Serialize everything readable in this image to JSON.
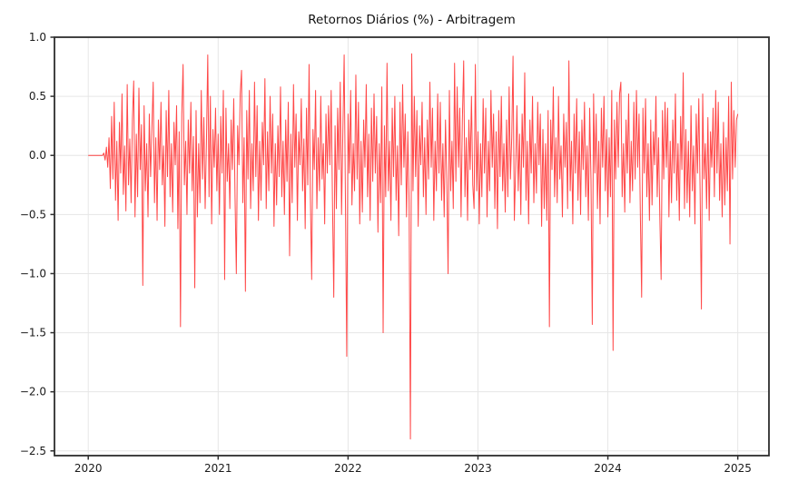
{
  "chart_data": {
    "type": "line",
    "title": "Retornos Diários (%) - Arbitragem",
    "xlabel": "",
    "ylabel": "",
    "grid": true,
    "legend": "none",
    "xlim": [
      2019.74,
      2025.24
    ],
    "ylim": [
      -2.54,
      1.0
    ],
    "x_ticks": [
      2020,
      2021,
      2022,
      2023,
      2024,
      2025
    ],
    "x_tick_labels": [
      "2020",
      "2021",
      "2022",
      "2023",
      "2024",
      "2025"
    ],
    "y_ticks": [
      1.0,
      0.5,
      0.0,
      -0.5,
      -1.0,
      -1.5,
      -2.0,
      -2.5
    ],
    "y_tick_labels": [
      "1.0",
      "0.5",
      "0.0",
      "−0.5",
      "−1.0",
      "−1.5",
      "−2.0",
      "−2.5"
    ],
    "style": {
      "line_color": "#ff1f1f",
      "line_opacity": 0.82,
      "line_width": 1,
      "grid_color": "#e6e6e6",
      "spine_color": "#2e2e2e",
      "background": "#ffffff"
    },
    "extremes": {
      "min": {
        "x": 2022.48,
        "y": -2.4
      },
      "max": {
        "x": 2022.49,
        "y": 0.86
      }
    },
    "notable_drops": [
      {
        "x": 2020.42,
        "y": -1.1
      },
      {
        "x": 2020.71,
        "y": -1.45
      },
      {
        "x": 2020.82,
        "y": -1.12
      },
      {
        "x": 2021.05,
        "y": -1.05
      },
      {
        "x": 2021.14,
        "y": -1.0
      },
      {
        "x": 2021.21,
        "y": -1.15
      },
      {
        "x": 2021.72,
        "y": -1.05
      },
      {
        "x": 2021.89,
        "y": -1.2
      },
      {
        "x": 2021.99,
        "y": -1.7
      },
      {
        "x": 2022.27,
        "y": -1.5
      },
      {
        "x": 2022.48,
        "y": -2.4
      },
      {
        "x": 2023.55,
        "y": -1.45
      },
      {
        "x": 2023.88,
        "y": -1.43
      },
      {
        "x": 2024.04,
        "y": -1.65
      },
      {
        "x": 2024.26,
        "y": -1.2
      },
      {
        "x": 2024.41,
        "y": -1.05
      },
      {
        "x": 2024.72,
        "y": -1.3
      }
    ],
    "series": [
      {
        "name": "Arbitragem",
        "x_start": 2020.0,
        "x_step": 0.01,
        "x_unit": "years",
        "values": [
          0,
          0,
          0,
          0,
          0,
          0,
          0,
          0,
          0,
          0,
          0,
          0,
          0.02,
          -0.04,
          0.07,
          -0.1,
          0.15,
          -0.28,
          0.33,
          -0.2,
          0.45,
          -0.38,
          0.12,
          -0.55,
          0.28,
          -0.15,
          0.52,
          -0.33,
          0.08,
          -0.47,
          0.6,
          -0.25,
          0.14,
          -0.4,
          0.3,
          0.63,
          -0.52,
          0.18,
          -0.35,
          0.57,
          -0.12,
          0.26,
          -1.1,
          0.42,
          -0.3,
          0.1,
          -0.52,
          0.35,
          -0.18,
          0.23,
          0.62,
          -0.4,
          0.15,
          -0.55,
          0.3,
          -0.12,
          0.45,
          -0.25,
          0.08,
          -0.6,
          0.38,
          -0.18,
          0.55,
          -0.35,
          0.1,
          -0.48,
          0.28,
          -0.08,
          0.42,
          -0.62,
          0.2,
          -1.45,
          0.35,
          0.77,
          -0.25,
          0.12,
          -0.5,
          0.3,
          -0.15,
          0.45,
          -0.3,
          0.16,
          -1.12,
          0.38,
          -0.52,
          0.1,
          -0.4,
          0.55,
          -0.2,
          0.32,
          -0.45,
          0.12,
          0.85,
          -0.35,
          0.5,
          -0.58,
          0.22,
          -0.1,
          0.4,
          -0.3,
          0.18,
          -0.5,
          0.33,
          -0.15,
          0.55,
          -1.05,
          0.4,
          -0.22,
          0.1,
          -0.45,
          0.3,
          -0.12,
          0.48,
          -0.35,
          -1.0,
          0.25,
          -0.08,
          0.52,
          0.72,
          -0.4,
          0.15,
          -1.15,
          0.38,
          -0.2,
          0.55,
          -0.45,
          0.1,
          -0.3,
          0.62,
          -0.18,
          0.42,
          -0.55,
          0.12,
          -0.38,
          0.28,
          -0.08,
          0.65,
          -0.45,
          0.2,
          -0.3,
          0.5,
          -0.15,
          0.35,
          -0.6,
          0.1,
          -0.42,
          0.25,
          -0.18,
          0.58,
          -0.35,
          0.12,
          -0.5,
          0.3,
          -0.22,
          0.45,
          -0.85,
          0.18,
          -0.4,
          0.6,
          -0.1,
          0.35,
          -0.55,
          0.2,
          -0.08,
          0.48,
          -0.3,
          0.14,
          -0.62,
          0.4,
          -0.25,
          0.77,
          -0.35,
          -1.05,
          0.22,
          -0.12,
          0.55,
          -0.45,
          0.15,
          -0.3,
          0.5,
          -0.2,
          0.1,
          -0.58,
          0.35,
          -0.15,
          0.42,
          -0.08,
          0.55,
          -0.38,
          -1.2,
          0.25,
          -0.45,
          0.4,
          -0.12,
          0.62,
          -0.5,
          0.2,
          0.85,
          -0.4,
          -1.7,
          0.35,
          -0.15,
          0.55,
          -0.42,
          0.1,
          -0.3,
          0.68,
          -0.2,
          0.45,
          -0.58,
          0.12,
          -0.48,
          0.3,
          -0.1,
          0.6,
          -0.35,
          0.18,
          -0.55,
          0.4,
          -0.22,
          0.52,
          -0.15,
          0.33,
          -0.65,
          0.1,
          -0.4,
          0.58,
          -1.5,
          0.25,
          -0.35,
          0.78,
          -0.3,
          0.12,
          -0.55,
          0.4,
          -0.18,
          0.5,
          -0.38,
          0.08,
          -0.68,
          0.45,
          -0.25,
          0.6,
          -0.1,
          0.35,
          -0.52,
          0.2,
          -0.4,
          -2.4,
          0.86,
          -0.3,
          0.5,
          -0.18,
          0.38,
          -0.6,
          0.25,
          -0.08,
          0.45,
          -0.35,
          0.15,
          -0.5,
          0.3,
          -0.2,
          0.62,
          -0.1,
          0.4,
          -0.55,
          0.12,
          -0.3,
          0.52,
          -0.15,
          0.45,
          -0.38,
          0.1,
          -0.52,
          0.3,
          -0.2,
          -1.0,
          0.55,
          -0.3,
          0.12,
          -0.45,
          0.78,
          -0.22,
          0.58,
          -0.1,
          0.4,
          -0.52,
          0.3,
          0.8,
          -0.35,
          0.15,
          -0.55,
          0.3,
          -0.12,
          0.5,
          -0.25,
          -0.45,
          0.77,
          -0.3,
          0.2,
          -0.58,
          0.1,
          -0.35,
          0.48,
          -0.15,
          0.4,
          -0.52,
          0.12,
          -0.3,
          0.55,
          -0.1,
          0.35,
          -0.45,
          0.2,
          -0.62,
          0.38,
          -0.18,
          0.5,
          -0.3,
          0.1,
          -0.48,
          0.3,
          -0.35,
          0.58,
          -0.2,
          0.15,
          0.84,
          -0.55,
          -0.12,
          0.42,
          -0.3,
          0.18,
          -0.5,
          0.35,
          -0.1,
          0.7,
          -0.38,
          0.12,
          -0.58,
          0.3,
          -0.15,
          0.5,
          -0.4,
          0.1,
          -0.32,
          0.45,
          -0.08,
          0.35,
          -0.6,
          0.22,
          -0.45,
          0.1,
          -0.55,
          0.38,
          -1.45,
          0.3,
          -0.12,
          0.58,
          -0.35,
          0.15,
          -0.4,
          0.5,
          -0.2,
          0.08,
          -0.52,
          0.35,
          -0.1,
          0.28,
          -0.45,
          0.8,
          -0.3,
          0.12,
          -0.58,
          0.35,
          -0.15,
          0.48,
          -0.38,
          0.2,
          -0.5,
          0.3,
          -0.12,
          0.45,
          -0.35,
          0.08,
          -0.55,
          0.4,
          -0.2,
          -1.43,
          0.52,
          -0.15,
          0.35,
          -0.45,
          0.12,
          -0.58,
          0.4,
          -0.1,
          0.5,
          -0.3,
          0.22,
          -0.52,
          0.15,
          -0.35,
          0.55,
          -1.65,
          0.3,
          -0.2,
          0.45,
          -0.1,
          0.52,
          0.62,
          -0.35,
          0.1,
          -0.48,
          0.3,
          -0.15,
          0.52,
          -0.4,
          0.12,
          -0.3,
          0.45,
          -0.2,
          0.55,
          -0.1,
          0.35,
          -0.5,
          -1.2,
          0.4,
          -0.15,
          0.48,
          -0.35,
          0.1,
          -0.55,
          0.3,
          -0.42,
          0.2,
          -0.08,
          0.5,
          -0.35,
          0.15,
          -0.52,
          -1.05,
          0.38,
          -0.2,
          0.45,
          -0.1,
          0.4,
          -0.52,
          0.12,
          -0.4,
          0.3,
          -0.15,
          0.52,
          -0.38,
          0.1,
          -0.55,
          0.33,
          -0.12,
          0.7,
          -0.45,
          0.22,
          -0.4,
          0.12,
          -0.52,
          0.42,
          -0.3,
          0.08,
          -0.58,
          0.35,
          -0.15,
          0.48,
          -0.3,
          -1.3,
          0.52,
          -0.2,
          0.1,
          -0.45,
          0.32,
          -0.55,
          0.2,
          -0.1,
          0.4,
          -0.35,
          0.55,
          -0.15,
          0.45,
          -0.38,
          0.1,
          -0.52,
          0.28,
          -0.42,
          0.15,
          -0.3,
          0.5,
          -0.75,
          0.62,
          -0.2,
          0.38,
          -0.1,
          0.3,
          0.35
        ]
      }
    ]
  }
}
